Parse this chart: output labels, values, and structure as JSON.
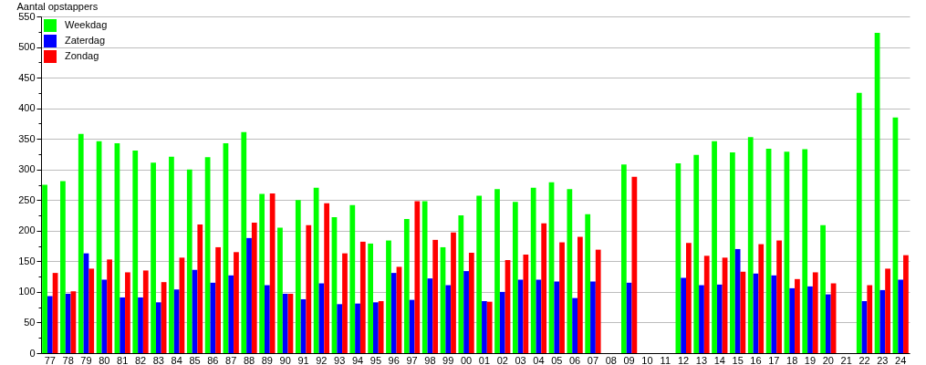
{
  "chart_data": {
    "type": "bar",
    "ylabel": "Aantal opstappers",
    "categories": [
      "77",
      "78",
      "79",
      "80",
      "81",
      "82",
      "83",
      "84",
      "85",
      "86",
      "87",
      "88",
      "89",
      "90",
      "91",
      "92",
      "93",
      "94",
      "95",
      "96",
      "97",
      "98",
      "99",
      "00",
      "01",
      "02",
      "03",
      "04",
      "05",
      "06",
      "07",
      "08",
      "09",
      "10",
      "11",
      "12",
      "13",
      "14",
      "15",
      "16",
      "17",
      "18",
      "19",
      "20",
      "21",
      "22",
      "23",
      "24"
    ],
    "series": [
      {
        "name": "Weekdag",
        "color": "#00ff00",
        "values": [
          275,
          281,
          358,
          346,
          343,
          331,
          311,
          321,
          300,
          320,
          343,
          361,
          260,
          205,
          250,
          270,
          222,
          242,
          179,
          184,
          219,
          248,
          173,
          225,
          257,
          268,
          247,
          270,
          279,
          268,
          227,
          null,
          308,
          null,
          null,
          310,
          324,
          346,
          328,
          353,
          334,
          329,
          333,
          209,
          null,
          425,
          523,
          385
        ]
      },
      {
        "name": "Zaterdag",
        "color": "#0000ff",
        "values": [
          93,
          97,
          163,
          120,
          91,
          91,
          83,
          104,
          136,
          115,
          127,
          188,
          111,
          97,
          88,
          114,
          80,
          81,
          83,
          131,
          87,
          122,
          111,
          134,
          85,
          100,
          120,
          120,
          117,
          90,
          117,
          null,
          115,
          null,
          null,
          123,
          111,
          112,
          170,
          130,
          127,
          106,
          109,
          96,
          null,
          85,
          103,
          120
        ]
      },
      {
        "name": "Zondag",
        "color": "#ff0000",
        "values": [
          131,
          101,
          138,
          153,
          132,
          135,
          116,
          156,
          210,
          173,
          165,
          213,
          261,
          97,
          209,
          245,
          163,
          182,
          85,
          141,
          248,
          185,
          197,
          164,
          84,
          152,
          161,
          212,
          181,
          190,
          169,
          null,
          288,
          null,
          null,
          180,
          159,
          156,
          133,
          178,
          184,
          121,
          132,
          114,
          null,
          111,
          138,
          160
        ]
      }
    ],
    "ylim": [
      0,
      550
    ],
    "yticks": [
      0,
      {
        "value": 25,
        "label": null
      },
      50,
      {
        "value": 75,
        "label": null
      },
      100,
      {
        "value": 125,
        "label": null
      },
      150,
      {
        "value": 175,
        "label": null
      },
      200,
      {
        "value": 225,
        "label": null
      },
      250,
      {
        "value": 275,
        "label": null
      },
      300,
      {
        "value": 325,
        "label": null
      },
      350,
      {
        "value": 375,
        "label": null
      },
      400,
      {
        "value": 425,
        "label": null
      },
      450,
      {
        "value": 475,
        "label": null
      },
      500,
      {
        "value": 525,
        "label": null
      },
      550
    ],
    "grid": "y",
    "legend": "top left"
  }
}
